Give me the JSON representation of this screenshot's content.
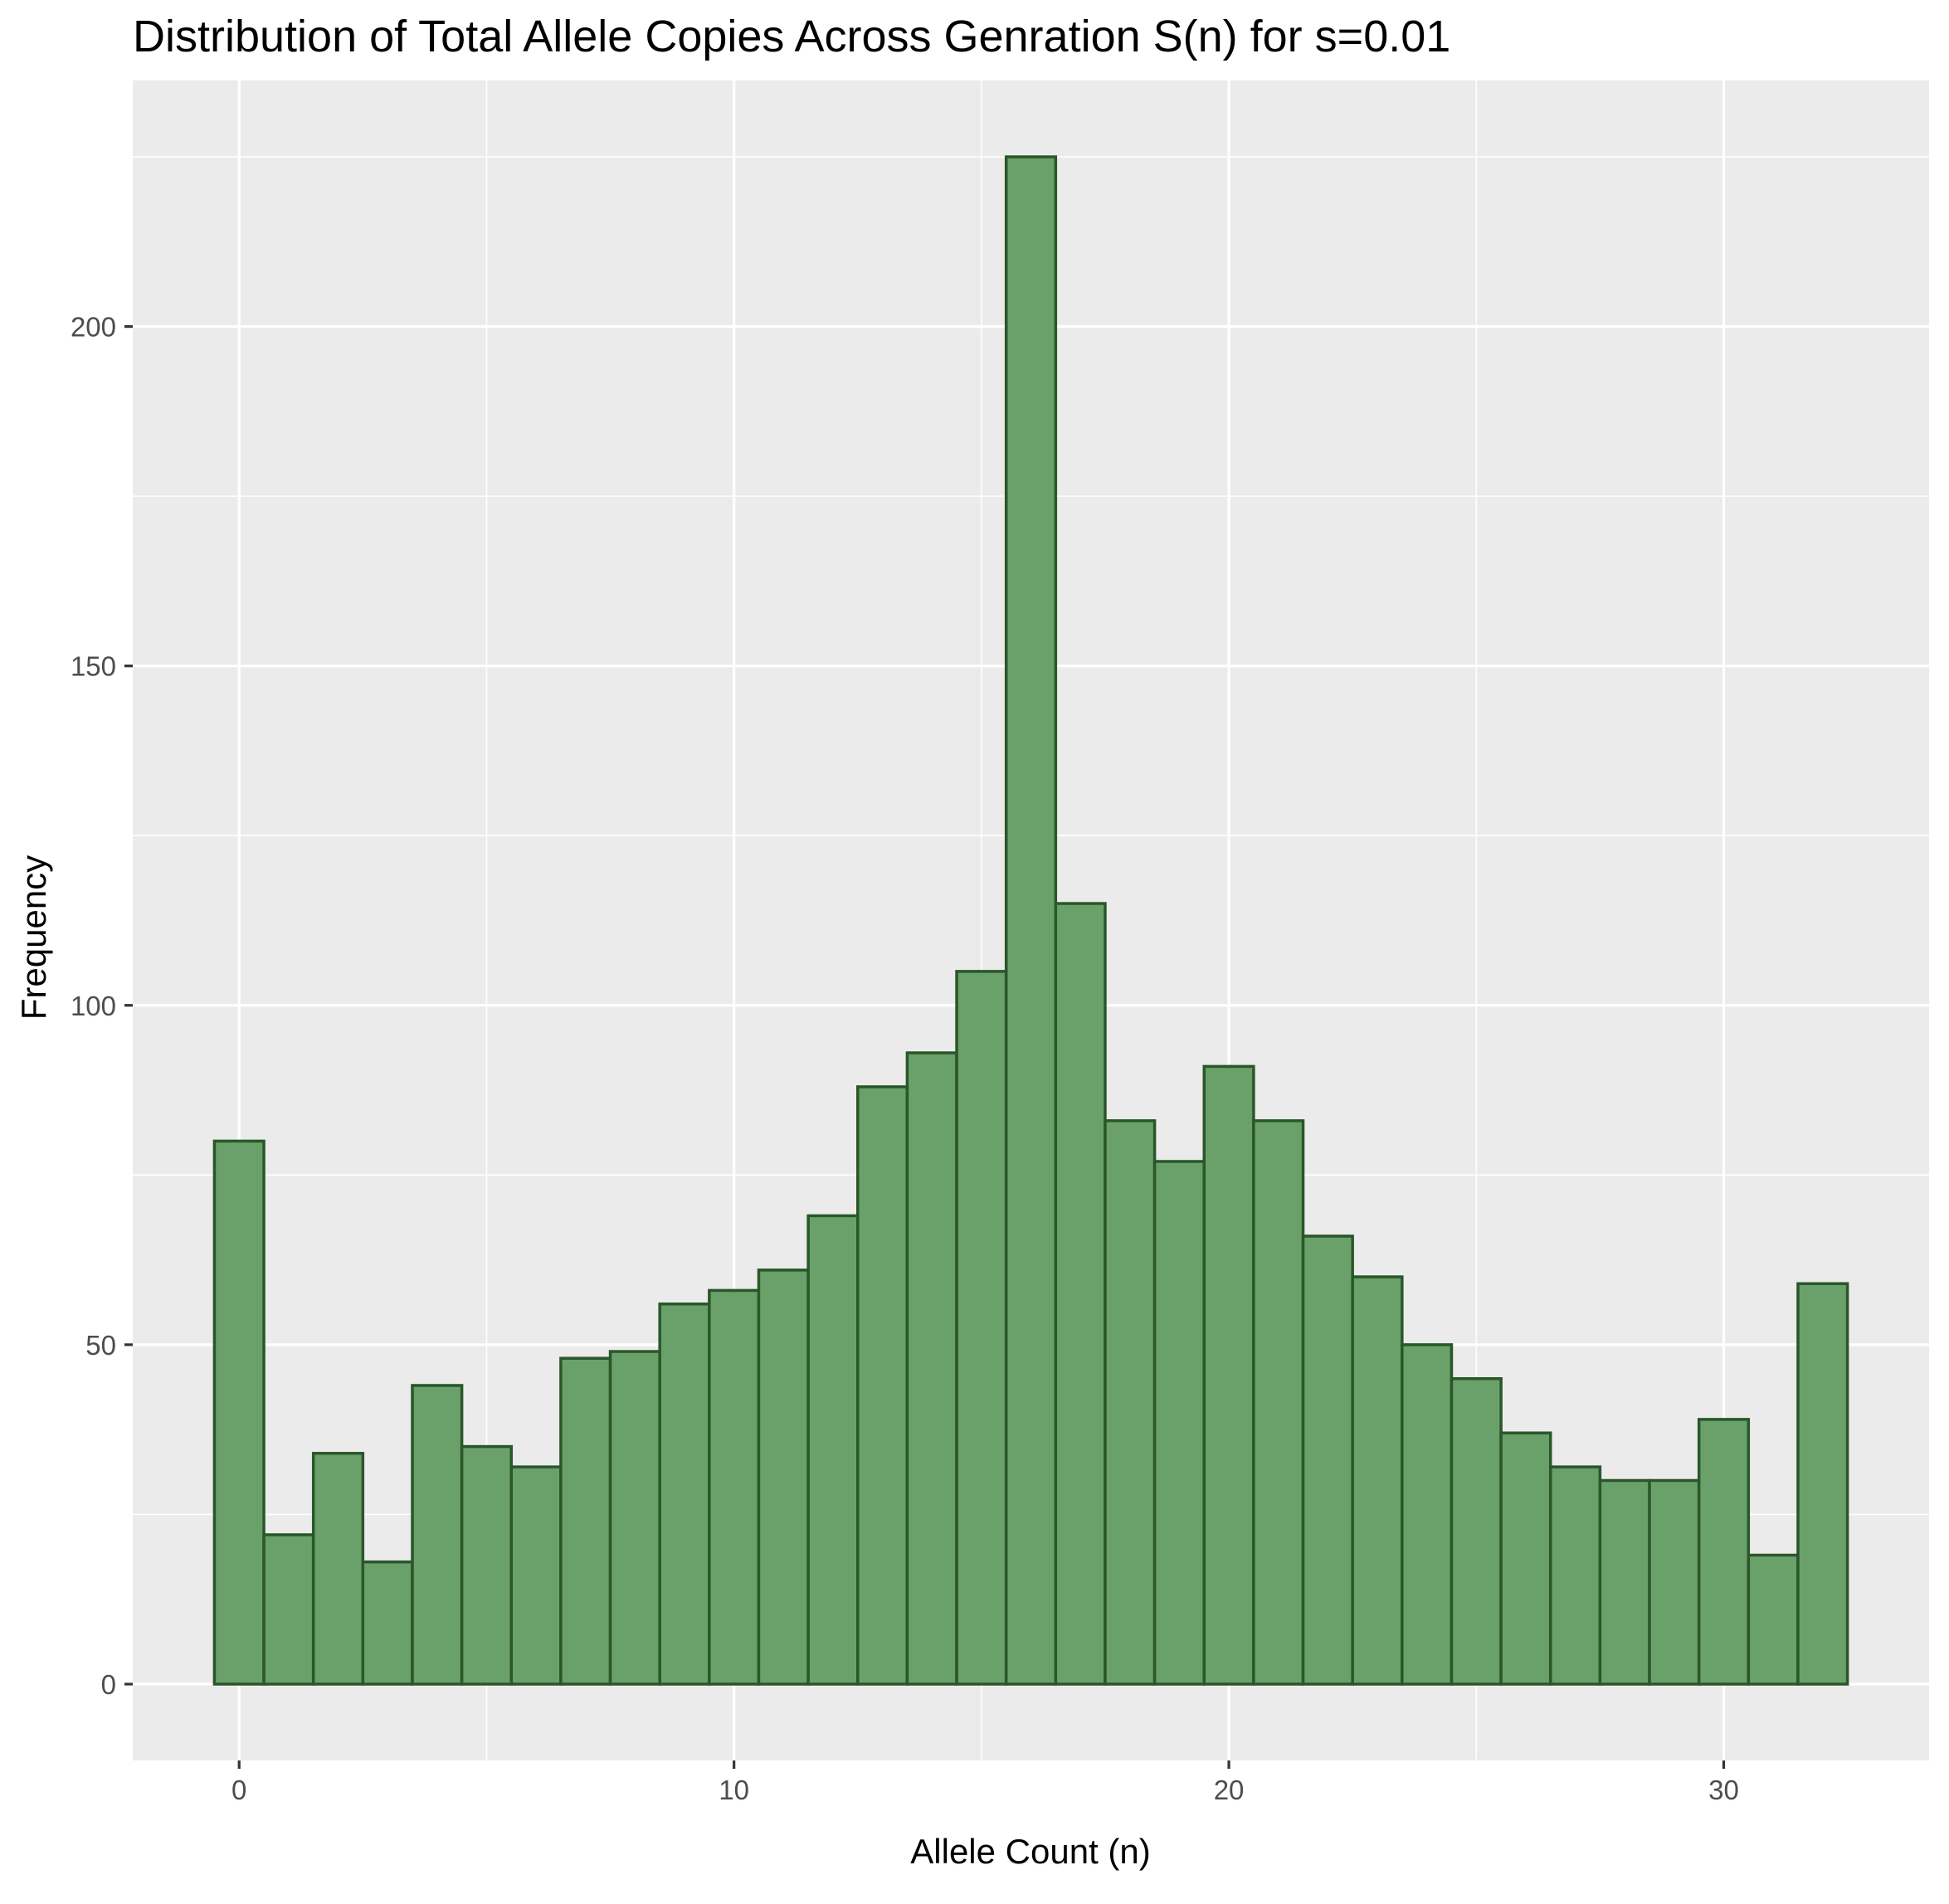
{
  "chart_data": {
    "type": "bar",
    "title": "Distribution of Total Allele Copies Across Genration S(n) for s=0.01",
    "xlabel": "Allele Count (n)",
    "ylabel": "Frequency",
    "x": [
      0,
      1,
      2,
      3,
      4,
      5,
      6,
      7,
      8,
      9,
      10,
      11,
      12,
      13,
      14,
      15,
      16,
      17,
      18,
      19,
      20,
      21,
      22,
      23,
      24,
      25,
      26,
      27,
      28,
      29,
      30,
      31,
      32
    ],
    "values": [
      80,
      22,
      34,
      18,
      44,
      35,
      32,
      48,
      49,
      56,
      58,
      61,
      69,
      88,
      93,
      105,
      225,
      115,
      83,
      77,
      91,
      83,
      66,
      60,
      50,
      45,
      37,
      32,
      30,
      30,
      39,
      19,
      59
    ],
    "bin_width": 1,
    "xlim": [
      -2.15,
      34.15
    ],
    "ylim": [
      -11.25,
      236.25
    ],
    "x_ticks": [
      0,
      10,
      20,
      30
    ],
    "x_tick_labels": [
      "0",
      "10",
      "20",
      "30"
    ],
    "y_ticks": [
      0,
      50,
      100,
      150,
      200
    ],
    "y_tick_labels": [
      "0",
      "50",
      "100",
      "150",
      "200"
    ],
    "bar_fill": "#6aa06a",
    "bar_outline": "#2a572a",
    "panel_background": "#ebebeb",
    "grid": true,
    "legend": "none"
  }
}
